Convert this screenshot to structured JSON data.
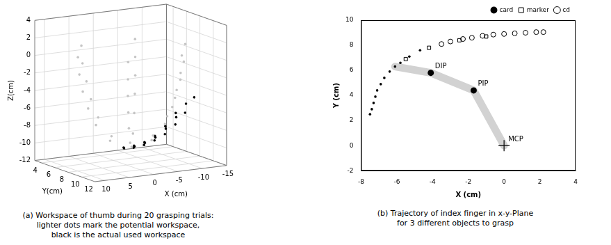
{
  "chart_data": [
    {
      "type": "scatter3d",
      "caption": [
        "(a) Workspace of thumb during 20 grasping trials:",
        "lighter dots mark the potential workspace,",
        "black is the actual used workspace"
      ],
      "x_label": "X (cm)",
      "y_label": "Y(cm)",
      "z_label": "Z(cm)",
      "xlim": [
        -15,
        12
      ],
      "ylim": [
        3,
        12
      ],
      "zlim": [
        -12,
        4
      ],
      "xticks": [
        -15,
        -10,
        -5,
        0,
        5,
        10
      ],
      "yticks": [
        4,
        6,
        8,
        10,
        12
      ],
      "zticks": [
        -12,
        -10,
        -8,
        -6,
        -4,
        -2,
        0,
        2,
        4
      ],
      "grid": true,
      "series": [
        {
          "color": "#c4c4c4",
          "marker": "dot",
          "x": [
            -1,
            3.4,
            1.2,
            -3.2,
            -5.4,
            -3.2,
            1.2,
            6.3,
            2.7,
            -4.7,
            -8.3,
            -4.7,
            2.7,
            7.9,
            3.5,
            -5.5,
            -9.9,
            -5.5,
            3.5,
            9,
            4,
            -6,
            -11,
            -6,
            4,
            9.7,
            4.4,
            -6.4,
            -11.7,
            -6.4,
            4.4,
            10,
            4.5,
            -6.5,
            -12,
            -6.5,
            4.5
          ],
          "y": [
            8,
            8,
            9.4,
            9.4,
            8,
            6.6,
            6.6,
            8,
            10.3,
            10.3,
            8,
            5.7,
            5.7,
            8,
            10.8,
            10.8,
            8,
            5.2,
            5.2,
            8,
            11.1,
            11.1,
            8,
            4.9,
            4.9,
            8,
            11.4,
            11.4,
            8,
            4.6,
            4.6,
            8,
            11.5,
            11.5,
            8,
            4.5,
            4.5
          ],
          "z": [
            -10,
            -9,
            -9,
            -9,
            -9,
            -9,
            -9,
            -7,
            -7,
            -7,
            -7,
            -7,
            -7,
            -5,
            -5,
            -5,
            -5,
            -5,
            -5,
            -3,
            -3,
            -3,
            -3,
            -3,
            -3,
            -1,
            -1,
            -1,
            -1,
            -1,
            -1,
            1,
            1,
            1,
            1,
            1,
            1
          ]
        },
        {
          "color": "#000000",
          "marker": "dot",
          "x": [
            2,
            0,
            -2,
            -4,
            -6,
            -8,
            -10,
            3,
            1,
            -1,
            -3,
            -5,
            -7,
            -9,
            2,
            0,
            -2,
            -4,
            -6,
            -8
          ],
          "y": [
            10.5,
            10.6,
            10.7,
            10.8,
            10.9,
            10.9,
            10.8,
            9.8,
            9.9,
            10,
            10.1,
            10.2,
            10.3,
            10.3,
            9,
            9.1,
            9.2,
            9.3,
            9.4,
            9.5
          ],
          "z": [
            -9.2,
            -9,
            -8.6,
            -8,
            -7,
            -5.8,
            -4.2,
            -9.4,
            -9.3,
            -9,
            -8.5,
            -7.6,
            -6.4,
            -5,
            -9.6,
            -9.5,
            -9.2,
            -8.6,
            -7.6,
            -6.2
          ]
        }
      ]
    },
    {
      "type": "scatter",
      "caption": [
        "(b) Trajectory of index finger in x-y-Plane",
        "for 3 different objects to grasp"
      ],
      "x_label": "X (cm)",
      "y_label": "Y (cm)",
      "xlim": [
        -8,
        4
      ],
      "ylim": [
        -2,
        10
      ],
      "xticks": [
        -8,
        -6,
        -4,
        -2,
        0,
        2,
        4
      ],
      "yticks": [
        -2,
        0,
        2,
        4,
        6,
        8,
        10
      ],
      "grid": false,
      "legend": "top-right",
      "series": [
        {
          "name": "card",
          "color": "#000000",
          "marker": "dot",
          "x": [
            -7.5,
            -7.4,
            -7.3,
            -7.2,
            -7.1,
            -6.9,
            -6.7,
            -6.4,
            -6.1,
            -5.8,
            -5.3,
            -4.7
          ],
          "y": [
            2.5,
            2.9,
            3.4,
            3.9,
            4.4,
            4.9,
            5.4,
            5.9,
            6.3,
            6.6,
            7.1,
            7.6
          ]
        },
        {
          "name": "marker",
          "color": "#000000",
          "marker": "square",
          "x": [
            -5.5,
            -4.2,
            -2.5,
            -1
          ],
          "y": [
            6.9,
            7.8,
            8.4,
            8.7
          ]
        },
        {
          "name": "cd",
          "color": "#000000",
          "marker": "circle",
          "x": [
            -3.5,
            -3,
            -2.3,
            -1.8,
            -1.2,
            -0.6,
            0,
            0.6,
            1.2,
            1.8,
            2.2
          ],
          "y": [
            8.1,
            8.3,
            8.5,
            8.6,
            8.75,
            8.85,
            8.9,
            8.95,
            9,
            9.05,
            9.05
          ]
        }
      ],
      "finger": {
        "color": "#d2d2d2",
        "x": [
          0,
          -1.7,
          -4.1,
          -6.1
        ],
        "y": [
          0,
          4.4,
          5.8,
          6.3
        ]
      },
      "joints": [
        {
          "label": "DIP",
          "x": -4.1,
          "y": 5.8,
          "marker": "dot"
        },
        {
          "label": "PIP",
          "x": -1.7,
          "y": 4.4,
          "marker": "dot"
        },
        {
          "label": "MCP",
          "x": 0,
          "y": 0,
          "marker": "cross"
        }
      ]
    }
  ]
}
